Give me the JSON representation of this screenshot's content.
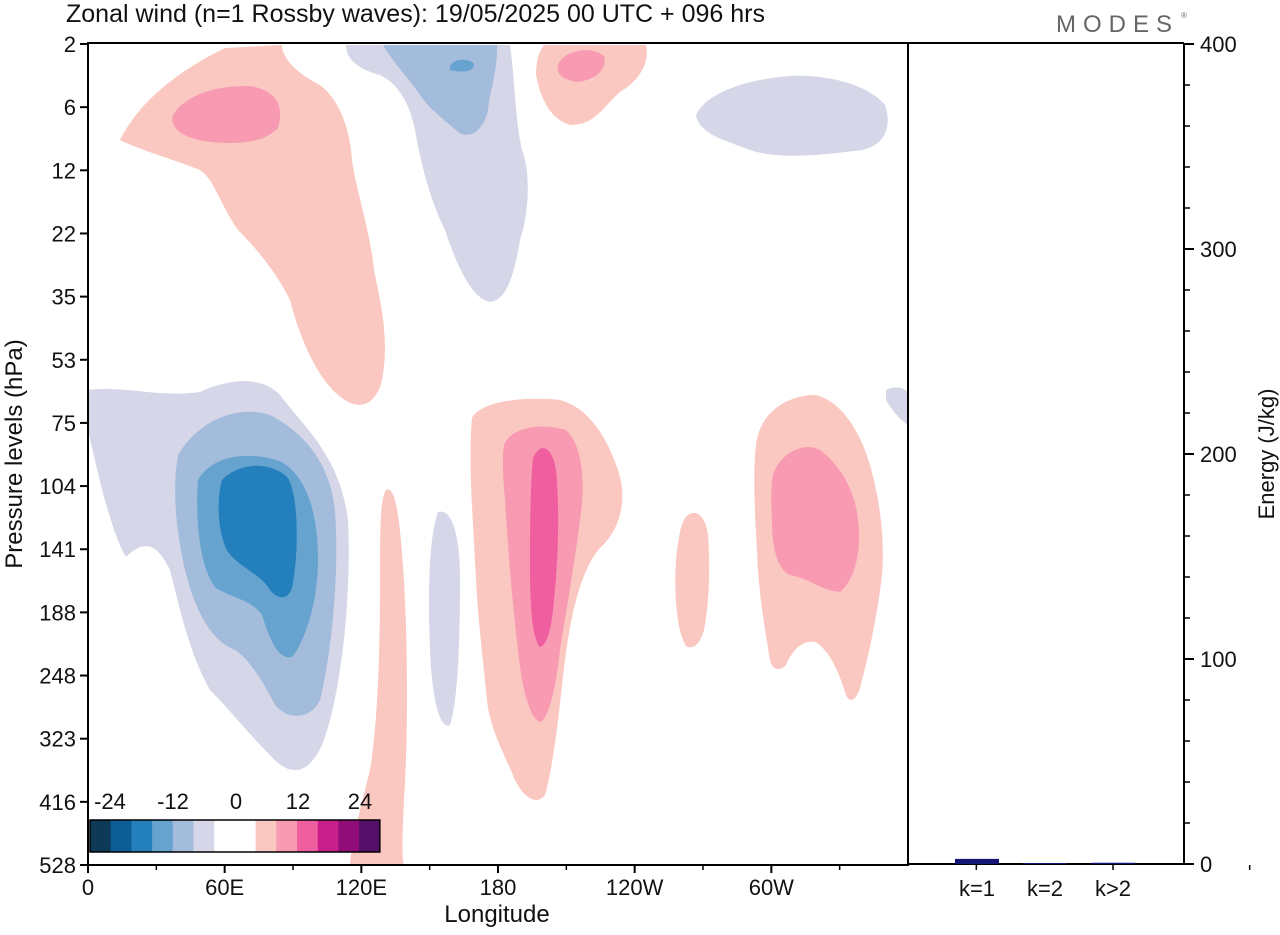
{
  "title": "Zonal wind (n=1 Rossby waves):  19/05/2025  00 UTC  + 096 hrs",
  "logo": "MODES",
  "colors": {
    "neg_levels": [
      "#0e3a57",
      "#0d5e96",
      "#2480bd",
      "#66a3cf",
      "#a3bcdb",
      "#d5d6e7"
    ],
    "pos_levels": [
      "#fac8c0",
      "#f79ab2",
      "#ef5e9f",
      "#c91f8a",
      "#8f0c79",
      "#55106b"
    ],
    "energy_bar": "#151575"
  },
  "chart_data": [
    {
      "type": "heatmap",
      "xlabel": "Longitude",
      "ylabel": "Pressure levels (hPa)",
      "x_ticks": [
        "0",
        "60E",
        "120E",
        "180",
        "120W",
        "60W"
      ],
      "y_ticks": [
        "2",
        "6",
        "12",
        "22",
        "35",
        "53",
        "75",
        "104",
        "141",
        "188",
        "248",
        "323",
        "416",
        "528"
      ],
      "colorbar": {
        "labels": [
          "-24",
          "-12",
          "0",
          "12",
          "24"
        ],
        "levels": [
          -30,
          -24,
          -18,
          -12,
          -6,
          -3,
          3,
          6,
          12,
          18,
          24,
          30
        ]
      }
    },
    {
      "type": "bar",
      "categories": [
        "k=1",
        "k=2",
        "k>2"
      ],
      "values": [
        2.5,
        0.3,
        0.6
      ],
      "ylabel": "Energy (J/kg)",
      "ylim": [
        0,
        400
      ],
      "y_ticks": [
        "0",
        "100",
        "200",
        "300",
        "400"
      ]
    }
  ]
}
